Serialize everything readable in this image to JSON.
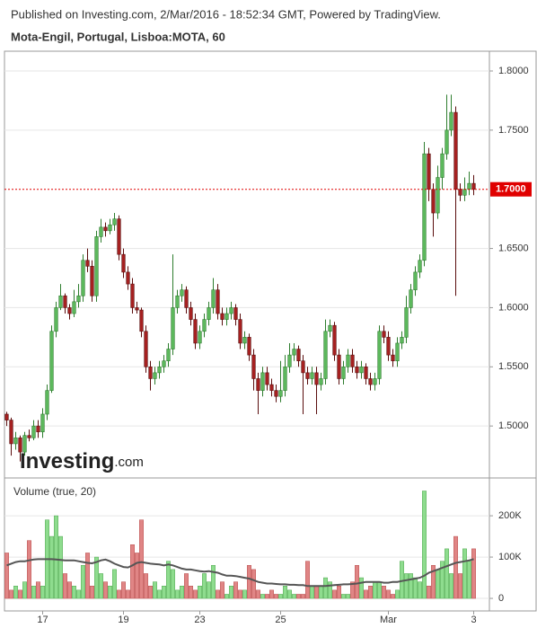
{
  "header": {
    "published": "Published on Investing.com, 2/Mar/2016 - 18:52:34 GMT, Powered by TradingView.",
    "instrument": "Mota-Engil, Portugal, Lisboa:MOTA, 60"
  },
  "chart_data": [
    {
      "type": "candlestick",
      "up_color": "#5cb85c",
      "down_color": "#a52020",
      "grid": true,
      "watermark": {
        "name": "Investing",
        "suffix": ".com"
      },
      "ylim": [
        1.4576,
        1.8167
      ],
      "yticks": [
        {
          "value": 1.5,
          "label": "1.5000"
        },
        {
          "value": 1.55,
          "label": "1.5500"
        },
        {
          "value": 1.6,
          "label": "1.6000"
        },
        {
          "value": 1.65,
          "label": "1.6500"
        },
        {
          "value": 1.75,
          "label": "1.7500"
        },
        {
          "value": 1.8,
          "label": "1.8000"
        }
      ],
      "last_price": {
        "value": 1.7,
        "label": "1.7000",
        "color": "#e00000"
      },
      "open": [
        1.51,
        1.505,
        1.485,
        1.49,
        1.478,
        1.492,
        1.49,
        1.5,
        1.495,
        1.51,
        1.53,
        1.58,
        1.6,
        1.61,
        1.6,
        1.595,
        1.605,
        1.61,
        1.64,
        1.635,
        1.61,
        1.66,
        1.668,
        1.665,
        1.67,
        1.675,
        1.645,
        1.63,
        1.62,
        1.6,
        1.598,
        1.58,
        1.55,
        1.54,
        1.545,
        1.55,
        1.555,
        1.565,
        1.6,
        1.61,
        1.615,
        1.6,
        1.59,
        1.57,
        1.58,
        1.59,
        1.6,
        1.615,
        1.595,
        1.59,
        1.595,
        1.6,
        1.59,
        1.57,
        1.575,
        1.56,
        1.54,
        1.53,
        1.545,
        1.535,
        1.53,
        1.525,
        1.53,
        1.55,
        1.56,
        1.565,
        1.555,
        1.545,
        1.54,
        1.545,
        1.535,
        1.54,
        1.58,
        1.585,
        1.56,
        1.54,
        1.55,
        1.56,
        1.55,
        1.545,
        1.55,
        1.54,
        1.535,
        1.54,
        1.58,
        1.575,
        1.56,
        1.555,
        1.57,
        1.575,
        1.6,
        1.615,
        1.63,
        1.64,
        1.73,
        1.7,
        1.68,
        1.71,
        1.73,
        1.75,
        1.765,
        1.7,
        1.695,
        1.7,
        1.705
      ],
      "high": [
        1.512,
        1.507,
        1.495,
        1.492,
        1.495,
        1.497,
        1.505,
        1.505,
        1.515,
        1.535,
        1.585,
        1.605,
        1.62,
        1.612,
        1.603,
        1.615,
        1.62,
        1.645,
        1.65,
        1.64,
        1.665,
        1.675,
        1.672,
        1.675,
        1.68,
        1.678,
        1.65,
        1.635,
        1.625,
        1.605,
        1.6,
        1.585,
        1.555,
        1.55,
        1.555,
        1.56,
        1.57,
        1.645,
        1.615,
        1.62,
        1.618,
        1.605,
        1.595,
        1.585,
        1.595,
        1.605,
        1.625,
        1.62,
        1.6,
        1.6,
        1.605,
        1.603,
        1.595,
        1.58,
        1.578,
        1.565,
        1.545,
        1.55,
        1.55,
        1.54,
        1.535,
        1.555,
        1.56,
        1.57,
        1.57,
        1.568,
        1.56,
        1.55,
        1.55,
        1.55,
        1.545,
        1.59,
        1.59,
        1.588,
        1.565,
        1.555,
        1.565,
        1.565,
        1.555,
        1.555,
        1.553,
        1.545,
        1.545,
        1.585,
        1.585,
        1.58,
        1.565,
        1.575,
        1.58,
        1.61,
        1.62,
        1.635,
        1.645,
        1.74,
        1.735,
        1.705,
        1.72,
        1.735,
        1.78,
        1.78,
        1.77,
        1.705,
        1.71,
        1.715,
        1.712
      ],
      "low": [
        1.5,
        1.475,
        1.48,
        1.47,
        1.475,
        1.487,
        1.488,
        1.49,
        1.49,
        1.505,
        1.528,
        1.575,
        1.598,
        1.595,
        1.59,
        1.592,
        1.6,
        1.605,
        1.63,
        1.605,
        1.605,
        1.655,
        1.66,
        1.662,
        1.665,
        1.64,
        1.625,
        1.615,
        1.595,
        1.595,
        1.575,
        1.545,
        1.53,
        1.535,
        1.54,
        1.545,
        1.55,
        1.56,
        1.595,
        1.605,
        1.595,
        1.585,
        1.565,
        1.565,
        1.575,
        1.585,
        1.595,
        1.59,
        1.585,
        1.585,
        1.59,
        1.585,
        1.565,
        1.565,
        1.555,
        1.53,
        1.51,
        1.525,
        1.53,
        1.525,
        1.52,
        1.52,
        1.525,
        1.545,
        1.555,
        1.55,
        1.51,
        1.535,
        1.535,
        1.51,
        1.53,
        1.535,
        1.575,
        1.555,
        1.535,
        1.535,
        1.545,
        1.545,
        1.54,
        1.54,
        1.535,
        1.53,
        1.53,
        1.535,
        1.57,
        1.555,
        1.55,
        1.55,
        1.565,
        1.57,
        1.595,
        1.61,
        1.625,
        1.635,
        1.69,
        1.66,
        1.675,
        1.7,
        1.725,
        1.745,
        1.61,
        1.69,
        1.69,
        1.695,
        1.695
      ],
      "close": [
        1.505,
        1.485,
        1.49,
        1.478,
        1.492,
        1.49,
        1.5,
        1.495,
        1.51,
        1.53,
        1.58,
        1.6,
        1.61,
        1.6,
        1.595,
        1.605,
        1.61,
        1.64,
        1.635,
        1.61,
        1.66,
        1.668,
        1.665,
        1.67,
        1.675,
        1.645,
        1.63,
        1.62,
        1.6,
        1.598,
        1.58,
        1.55,
        1.54,
        1.545,
        1.55,
        1.555,
        1.565,
        1.6,
        1.61,
        1.615,
        1.6,
        1.59,
        1.57,
        1.58,
        1.59,
        1.6,
        1.615,
        1.595,
        1.59,
        1.595,
        1.6,
        1.59,
        1.57,
        1.575,
        1.56,
        1.54,
        1.53,
        1.545,
        1.535,
        1.53,
        1.525,
        1.53,
        1.55,
        1.56,
        1.565,
        1.555,
        1.545,
        1.54,
        1.545,
        1.535,
        1.54,
        1.58,
        1.585,
        1.56,
        1.54,
        1.55,
        1.56,
        1.55,
        1.545,
        1.55,
        1.54,
        1.535,
        1.54,
        1.58,
        1.575,
        1.56,
        1.555,
        1.57,
        1.575,
        1.6,
        1.615,
        1.63,
        1.64,
        1.73,
        1.7,
        1.68,
        1.71,
        1.73,
        1.75,
        1.765,
        1.7,
        1.695,
        1.7,
        1.705,
        1.7
      ]
    },
    {
      "type": "bar",
      "title": "Volume (true, 20)",
      "up_color": "#8edc8e",
      "down_color": "#e08585",
      "line_color": "#555555",
      "grid": true,
      "ylim": [
        -26000,
        285000
      ],
      "yticks": [
        0,
        {
          "value": 100000,
          "label": "100K"
        },
        {
          "value": 200000,
          "label": "200K"
        }
      ],
      "categories": [
        null,
        null,
        null,
        null,
        null,
        null,
        null,
        null,
        "17",
        null,
        null,
        null,
        null,
        null,
        null,
        null,
        null,
        null,
        null,
        null,
        null,
        null,
        null,
        null,
        null,
        null,
        "19",
        null,
        null,
        null,
        null,
        null,
        null,
        null,
        null,
        null,
        null,
        null,
        null,
        null,
        null,
        null,
        null,
        "23",
        null,
        null,
        null,
        null,
        null,
        null,
        null,
        null,
        null,
        null,
        null,
        null,
        null,
        null,
        null,
        null,
        null,
        "25",
        null,
        null,
        null,
        null,
        null,
        null,
        null,
        null,
        null,
        null,
        null,
        null,
        null,
        null,
        null,
        null,
        null,
        null,
        null,
        null,
        null,
        null,
        null,
        "Mar",
        null,
        null,
        null,
        null,
        null,
        null,
        null,
        null,
        null,
        null,
        null,
        null,
        null,
        null,
        null,
        null,
        null,
        null,
        "3"
      ],
      "values": [
        110000,
        20000,
        30000,
        20000,
        40000,
        140000,
        30000,
        40000,
        30000,
        190000,
        150000,
        200000,
        150000,
        60000,
        40000,
        30000,
        20000,
        80000,
        110000,
        30000,
        100000,
        60000,
        40000,
        30000,
        70000,
        20000,
        40000,
        20000,
        130000,
        110000,
        190000,
        60000,
        30000,
        40000,
        20000,
        30000,
        90000,
        70000,
        20000,
        30000,
        60000,
        30000,
        20000,
        30000,
        60000,
        40000,
        80000,
        20000,
        40000,
        10000,
        30000,
        40000,
        20000,
        20000,
        80000,
        70000,
        20000,
        10000,
        10000,
        20000,
        10000,
        10000,
        30000,
        20000,
        10000,
        10000,
        10000,
        90000,
        30000,
        30000,
        30000,
        50000,
        40000,
        20000,
        30000,
        10000,
        10000,
        40000,
        80000,
        50000,
        20000,
        30000,
        40000,
        40000,
        30000,
        20000,
        10000,
        20000,
        90000,
        60000,
        60000,
        50000,
        40000,
        260000,
        30000,
        80000,
        70000,
        90000,
        120000,
        60000,
        150000,
        60000,
        120000,
        90000,
        120000
      ],
      "line_values": [
        80000,
        84000,
        88000,
        90000,
        90000,
        92000,
        94000,
        95000,
        95000,
        95000,
        95000,
        94000,
        93000,
        92000,
        92000,
        92000,
        90000,
        88000,
        86000,
        85000,
        88000,
        92000,
        94000,
        90000,
        84000,
        80000,
        76000,
        75000,
        80000,
        86000,
        88000,
        86000,
        84000,
        83000,
        82000,
        80000,
        82000,
        80000,
        76000,
        72000,
        70000,
        70000,
        68000,
        66000,
        65000,
        66000,
        64000,
        62000,
        58000,
        55000,
        55000,
        54000,
        52000,
        50000,
        48000,
        44000,
        40000,
        38000,
        36000,
        36000,
        35000,
        34000,
        34000,
        33000,
        33000,
        32000,
        32000,
        30000,
        30000,
        30000,
        30000,
        30000,
        31000,
        32000,
        33000,
        34000,
        34000,
        35000,
        36000,
        38000,
        40000,
        40000,
        40000,
        40000,
        38000,
        38000,
        40000,
        40000,
        42000,
        44000,
        46000,
        48000,
        50000,
        55000,
        62000,
        66000,
        70000,
        74000,
        78000,
        82000,
        86000,
        88000,
        90000,
        92000,
        95000
      ]
    }
  ]
}
